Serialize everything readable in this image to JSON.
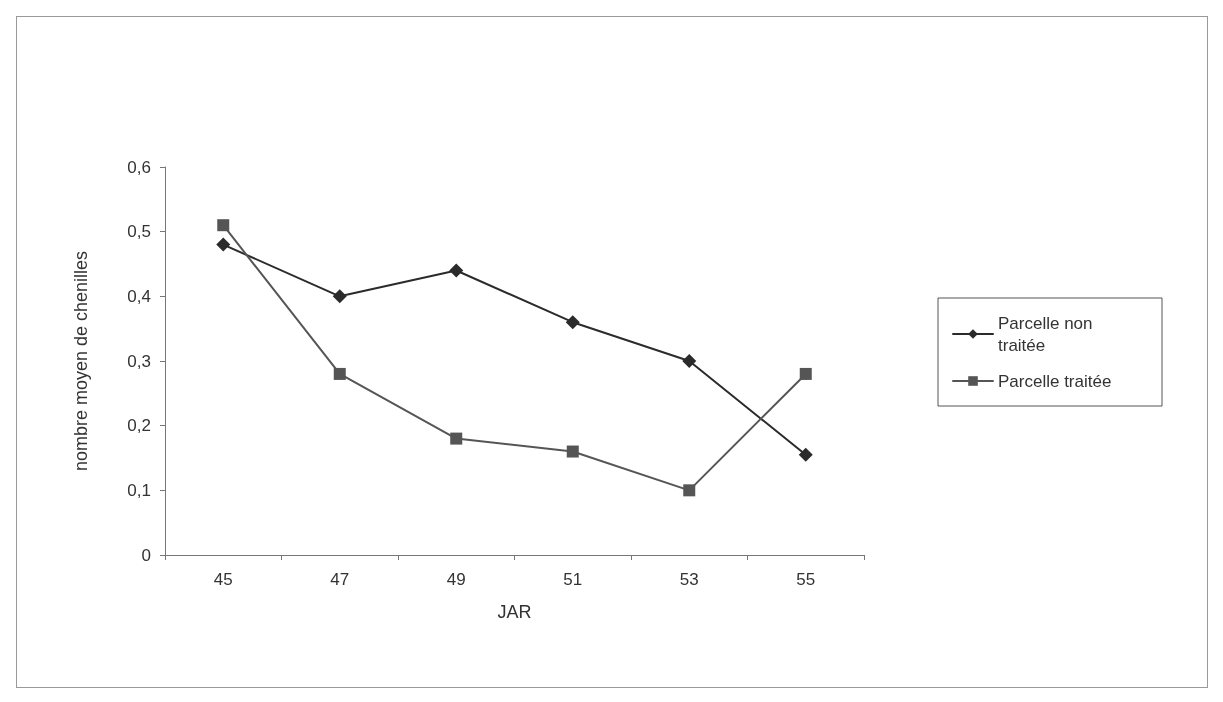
{
  "chart_data": {
    "type": "line",
    "xlabel": "JAR",
    "ylabel": "nombre moyen de chenilles",
    "categories": [
      "45",
      "47",
      "49",
      "51",
      "53",
      "55"
    ],
    "series": [
      {
        "name": "Parcelle non traitée",
        "color": "#2b2b2b",
        "marker": "diamond",
        "values": [
          0.48,
          0.4,
          0.44,
          0.36,
          0.3,
          0.155
        ]
      },
      {
        "name": "Parcelle traitée",
        "color": "#555555",
        "marker": "square",
        "values": [
          0.51,
          0.28,
          0.18,
          0.16,
          0.1,
          0.28
        ]
      }
    ],
    "ylim": [
      0,
      0.6
    ],
    "yticks": [
      0,
      {
        "value": 0.1,
        "label": "0,1"
      },
      {
        "value": 0.2,
        "label": "0,2"
      },
      {
        "value": 0.3,
        "label": "0,3"
      },
      {
        "value": 0.4,
        "label": "0,4"
      },
      {
        "value": 0.5,
        "label": "0,5"
      },
      {
        "value": 0.6,
        "label": "0,6"
      }
    ],
    "grid": false,
    "legend": "right",
    "line_style": "solid"
  }
}
